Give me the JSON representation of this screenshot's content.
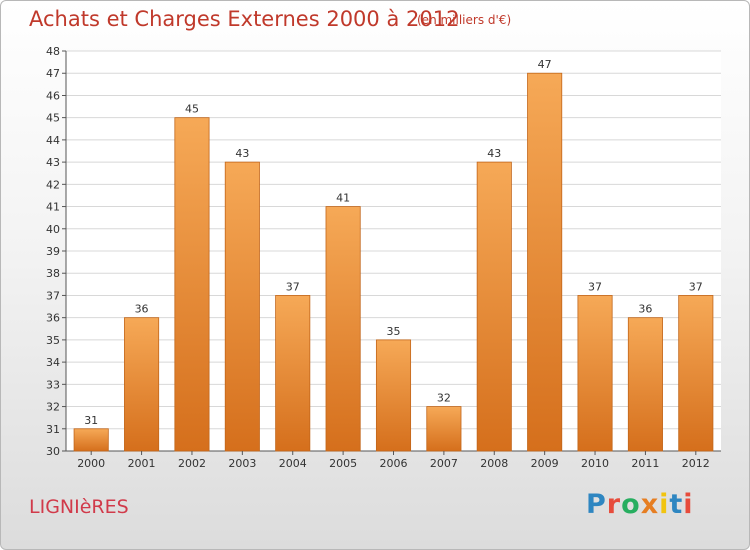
{
  "header": {
    "title": "Achats et Charges Externes 2000 à 2012",
    "subtitle": "(en milliers d'€)"
  },
  "footer": {
    "place": "LIGNIèRES",
    "brand": "Proxiti"
  },
  "colors": {
    "accent": "#c0392b",
    "bar_light": "#f6a957",
    "bar_dark": "#d56f1c"
  },
  "chart_data": {
    "type": "bar",
    "title": "Achats et Charges Externes 2000 à 2012",
    "subtitle": "(en milliers d'€)",
    "categories": [
      "2000",
      "2001",
      "2002",
      "2003",
      "2004",
      "2005",
      "2006",
      "2007",
      "2008",
      "2009",
      "2010",
      "2011",
      "2012"
    ],
    "values": [
      31,
      36,
      45,
      43,
      37,
      41,
      35,
      32,
      43,
      47,
      37,
      36,
      37
    ],
    "y_ticks": [
      "30",
      "31",
      "32",
      "33",
      "34",
      "35",
      "36",
      "37",
      "38",
      "39",
      "40",
      "41",
      "42",
      "43",
      "44",
      "45",
      "46",
      "47",
      "48"
    ],
    "ylim": [
      30,
      48
    ],
    "grid": true,
    "legend": "none"
  }
}
